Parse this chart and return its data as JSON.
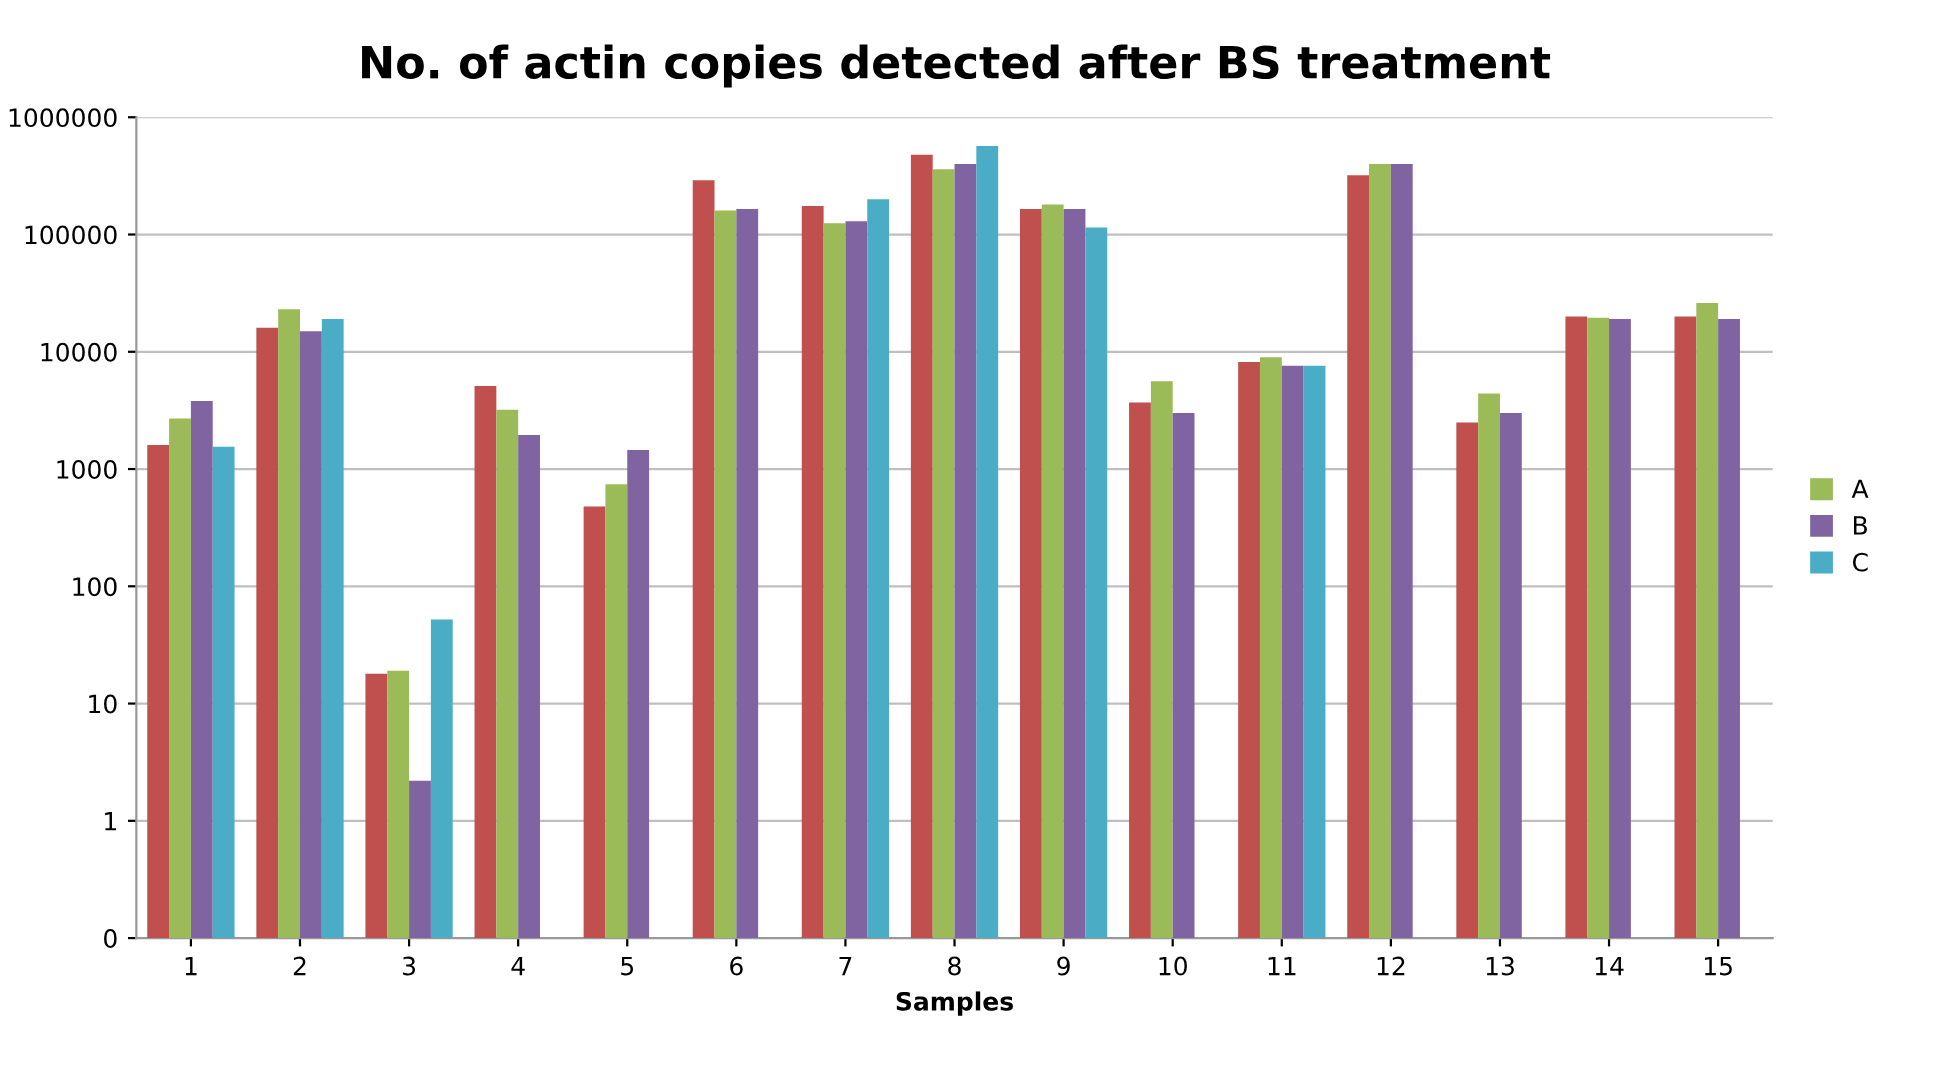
{
  "chart_data": {
    "type": "bar",
    "title": "No. of actin copies detected after BS treatment",
    "xlabel": "Samples",
    "categories": [
      "1",
      "2",
      "3",
      "4",
      "5",
      "6",
      "7",
      "8",
      "9",
      "10",
      "11",
      "12",
      "13",
      "14",
      "15"
    ],
    "series": [
      {
        "color": "#c0504d",
        "values": [
          1600,
          16000,
          18,
          5100,
          480,
          290000,
          175000,
          480000,
          165000,
          3700,
          8200,
          320000,
          2500,
          20000,
          20000
        ]
      },
      {
        "name": "A",
        "color": "#9bbb59",
        "values": [
          2700,
          23000,
          19,
          3200,
          740,
          160000,
          125000,
          360000,
          180000,
          5600,
          9000,
          400000,
          4400,
          19500,
          26000
        ]
      },
      {
        "name": "B",
        "color": "#8064a2",
        "values": [
          3800,
          15000,
          2.2,
          1950,
          1450,
          165000,
          130000,
          400000,
          165000,
          3000,
          7600,
          400000,
          3000,
          19000,
          19000
        ]
      },
      {
        "name": "C",
        "color": "#4bacc6",
        "values": [
          1550,
          19000,
          52,
          null,
          null,
          null,
          200000,
          570000,
          115000,
          null,
          7600,
          null,
          null,
          null,
          null
        ]
      }
    ],
    "log": true,
    "ylim": [
      0.1,
      1000000
    ],
    "yticks": [
      {
        "value": 0.1,
        "label": "0"
      },
      1,
      10,
      100,
      1000,
      10000,
      100000,
      1000000
    ],
    "grid": "y",
    "legend": "right"
  }
}
